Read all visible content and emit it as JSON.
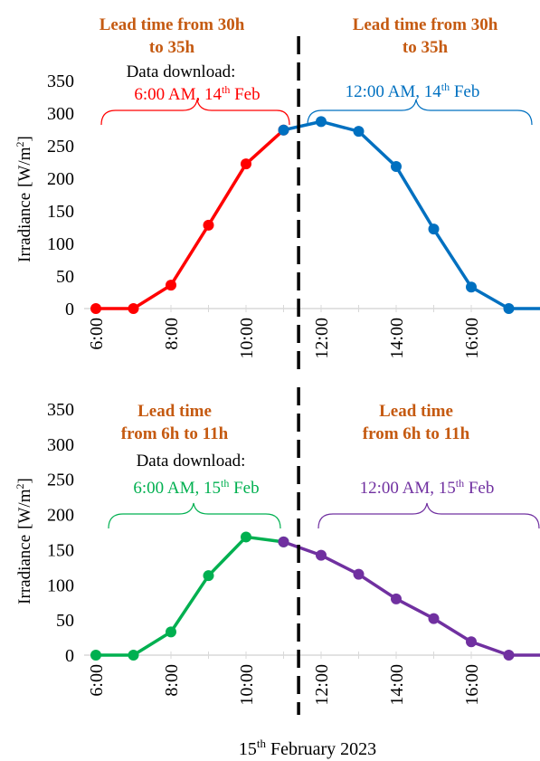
{
  "chart_data": [
    {
      "type": "line",
      "ylabel": "Irradiance",
      "ylabel_unit": "[W/m",
      "ylabel_unit_sup": "2",
      "ylabel_unit_end": "]",
      "ylim": [
        0,
        350
      ],
      "yticks": [
        "0",
        "50",
        "100",
        "150",
        "200",
        "250",
        "300",
        "350"
      ],
      "x": [
        6,
        7,
        8,
        9,
        10,
        11,
        12,
        13,
        14,
        15,
        16,
        17
      ],
      "xticks": [
        "6:00",
        "8:00",
        "10:00",
        "12:00",
        "14:00",
        "16:00"
      ],
      "divider_x": 11.4,
      "series": [
        {
          "name": "6:00 AM, 14th Feb",
          "color": "#ff0000",
          "x": [
            6,
            7,
            8,
            9,
            10,
            11
          ],
          "values": [
            0,
            0,
            36,
            128,
            222,
            274
          ]
        },
        {
          "name": "12:00 AM, 14th Feb",
          "color": "#0070c0",
          "x": [
            11,
            12,
            13,
            14,
            15,
            16,
            17
          ],
          "values": [
            274,
            287,
            272,
            218,
            122,
            33,
            0
          ]
        }
      ],
      "left_note": {
        "title": "Lead time from 30h to 35h",
        "title_l1": "Lead time from 30h",
        "title_l2": "to 35h",
        "download_label": "Data download:",
        "time": "6:00 AM, 14",
        "sup": "th",
        "tail": " Feb"
      },
      "right_note": {
        "title_l1": "Lead time from 30h",
        "title_l2": "to 35h",
        "time": "12:00 AM, 14",
        "sup": "th",
        "tail": " Feb"
      }
    },
    {
      "type": "line",
      "ylabel": "Irradiance",
      "ylabel_unit": "[W/m",
      "ylabel_unit_sup": "2",
      "ylabel_unit_end": "]",
      "ylim": [
        0,
        350
      ],
      "yticks": [
        "0",
        "50",
        "100",
        "150",
        "200",
        "250",
        "300",
        "350"
      ],
      "x": [
        6,
        7,
        8,
        9,
        10,
        11,
        12,
        13,
        14,
        15,
        16,
        17
      ],
      "xticks": [
        "6:00",
        "8:00",
        "10:00",
        "12:00",
        "14:00",
        "16:00"
      ],
      "divider_x": 11.4,
      "series": [
        {
          "name": "6:00 AM, 15th Feb",
          "color": "#00b050",
          "x": [
            6,
            7,
            8,
            9,
            10,
            11
          ],
          "values": [
            0,
            0,
            33,
            113,
            168,
            161
          ]
        },
        {
          "name": "12:00 AM, 15th Feb",
          "color": "#7030a0",
          "x": [
            11,
            12,
            13,
            14,
            15,
            16,
            17
          ],
          "values": [
            161,
            142,
            115,
            80,
            52,
            19,
            0
          ]
        }
      ],
      "left_note": {
        "title_l1": "Lead time",
        "title_l2": "from 6h to 11h",
        "download_label": "Data download:",
        "time": "6:00 AM, 15",
        "sup": "th",
        "tail": " Feb"
      },
      "right_note": {
        "title_l1": "Lead time",
        "title_l2": "from 6h to 11h",
        "time": "12:00 AM, 15",
        "sup": "th",
        "tail": " Feb"
      }
    }
  ],
  "xlabel": {
    "pre": "15",
    "sup": "th",
    "post": " February 2023"
  },
  "colors": {
    "title": "#c55a11",
    "divider": "#000000",
    "axis": "#d9d9d9"
  }
}
